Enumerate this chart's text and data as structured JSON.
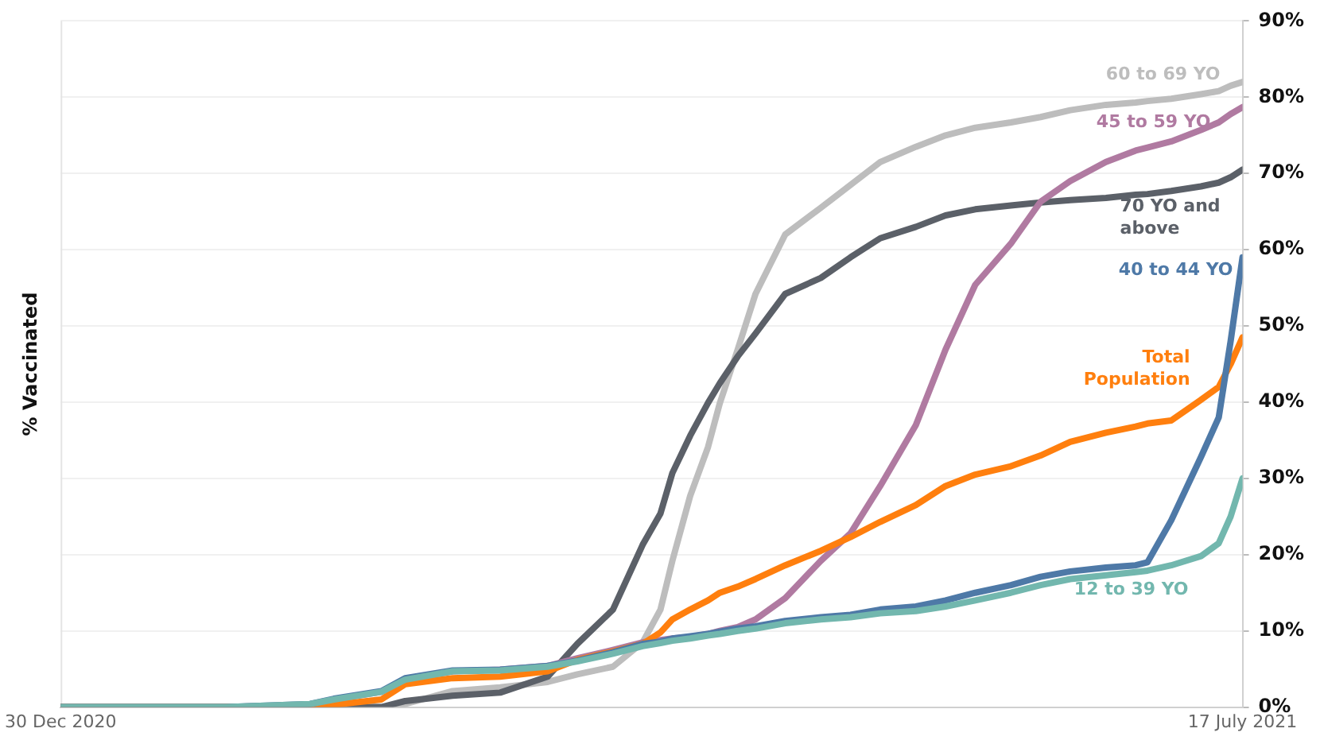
{
  "chart_data": {
    "type": "line",
    "ylabel": "% Vaccinated",
    "x": [
      "2020-12-30",
      "2021-01-27",
      "2021-02-10",
      "2021-02-14",
      "2021-02-22",
      "2021-02-26",
      "2021-03-06",
      "2021-03-14",
      "2021-03-22",
      "2021-03-27",
      "2021-04-02",
      "2021-04-07",
      "2021-04-10",
      "2021-04-12",
      "2021-04-15",
      "2021-04-18",
      "2021-04-20",
      "2021-04-23",
      "2021-04-26",
      "2021-05-01",
      "2021-05-07",
      "2021-05-12",
      "2021-05-17",
      "2021-05-23",
      "2021-05-28",
      "2021-06-02",
      "2021-06-08",
      "2021-06-13",
      "2021-06-18",
      "2021-06-24",
      "2021-06-29",
      "2021-07-01",
      "2021-07-05",
      "2021-07-10",
      "2021-07-13",
      "2021-07-15",
      "2021-07-17"
    ],
    "series": [
      {
        "name": "60 to 69 YO",
        "color": "#bdbdbd",
        "values": [
          0,
          0,
          0,
          0,
          0,
          0.4,
          2.1,
          2.6,
          3.3,
          4.3,
          5.3,
          8.5,
          12.8,
          19.2,
          27.7,
          34.1,
          39.9,
          46.9,
          54.2,
          62,
          65.5,
          68.5,
          71.5,
          73.5,
          75,
          76,
          76.7,
          77.4,
          78.3,
          79,
          79.3,
          79.5,
          79.8,
          80.4,
          80.8,
          81.5,
          82
        ]
      },
      {
        "name": "70 YO and above",
        "color": "#5b6068",
        "values": [
          0,
          0,
          0,
          0,
          0,
          0.8,
          1.5,
          1.9,
          4,
          8.3,
          12.8,
          21.3,
          25.4,
          30.7,
          35.6,
          39.9,
          42.5,
          46,
          49,
          54.2,
          56.3,
          59,
          61.5,
          63,
          64.5,
          65.3,
          65.8,
          66.2,
          66.5,
          66.8,
          67.2,
          67.3,
          67.7,
          68.3,
          68.8,
          69.5,
          70.5
        ]
      },
      {
        "name": "45 to 59 YO",
        "color": "#b07aa1",
        "values": [
          0,
          0,
          0.3,
          1,
          2,
          3.6,
          4.7,
          4.9,
          5.4,
          6.4,
          7.5,
          8.5,
          8.8,
          9,
          9.2,
          9.6,
          10,
          10.5,
          11.5,
          14.3,
          19.2,
          22.8,
          29,
          37,
          46.9,
          55.4,
          60.8,
          66.3,
          69,
          71.5,
          73,
          73.4,
          74.2,
          75.7,
          76.7,
          77.8,
          78.7
        ]
      },
      {
        "name": "Total Population",
        "color": "#ff7f0e",
        "values": [
          0,
          0,
          0,
          0.3,
          1,
          3,
          3.8,
          4,
          4.7,
          6.2,
          7.3,
          8.3,
          9.8,
          11.5,
          12.8,
          14,
          15,
          15.8,
          16.8,
          18.6,
          20.5,
          22.3,
          24.3,
          26.5,
          29,
          30.5,
          31.6,
          33,
          34.8,
          36,
          36.8,
          37.2,
          37.6,
          40.3,
          42,
          45,
          48.5
        ]
      },
      {
        "name": "40 to 44 YO",
        "color": "#4e79a7",
        "values": [
          0,
          0,
          0.4,
          1.1,
          2.1,
          3.8,
          4.8,
          4.9,
          5.4,
          6.1,
          7.2,
          8.3,
          8.6,
          9,
          9.3,
          9.6,
          9.9,
          10.3,
          10.6,
          11.3,
          11.8,
          12.1,
          12.8,
          13.2,
          14,
          15,
          16,
          17.1,
          17.8,
          18.3,
          18.6,
          19,
          24.5,
          32.8,
          38,
          48,
          59
        ]
      },
      {
        "name": "12 to 39 YO",
        "color": "#72b7ae",
        "values": [
          0,
          0,
          0.4,
          1,
          2,
          3.6,
          4.7,
          4.8,
          5.3,
          6,
          7,
          8,
          8.4,
          8.7,
          9,
          9.4,
          9.6,
          10,
          10.3,
          11,
          11.5,
          11.8,
          12.3,
          12.6,
          13.2,
          14,
          15,
          16,
          16.8,
          17.3,
          17.7,
          17.9,
          18.6,
          19.8,
          21.5,
          25,
          30
        ]
      }
    ],
    "xlim": [
      "2020-12-30",
      "2021-07-17"
    ],
    "xticks": [
      {
        "value": "2020-12-30",
        "label": "30 Dec 2020"
      },
      {
        "value": "2021-07-17",
        "label": "17 July 2021"
      }
    ],
    "ylim": [
      0,
      90
    ],
    "yticks": [
      {
        "value": 0,
        "label": "0%"
      },
      {
        "value": 10,
        "label": "10%"
      },
      {
        "value": 20,
        "label": "20%"
      },
      {
        "value": 30,
        "label": "30%"
      },
      {
        "value": 40,
        "label": "40%"
      },
      {
        "value": 50,
        "label": "50%"
      },
      {
        "value": 60,
        "label": "60%"
      },
      {
        "value": 70,
        "label": "70%"
      },
      {
        "value": 80,
        "label": "80%"
      },
      {
        "value": 90,
        "label": "90%"
      }
    ],
    "grid": "y",
    "legend": false,
    "marker": "none",
    "line_style": "solid"
  }
}
